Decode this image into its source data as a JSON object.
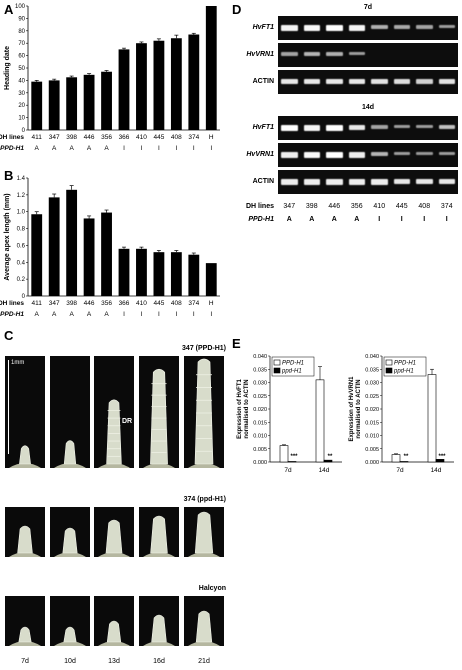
{
  "panels": {
    "A": "A",
    "B": "B",
    "C": "C",
    "D": "D",
    "E": "E"
  },
  "dh_label": "DH lines",
  "ppd_label": "PPD-H1",
  "chartA": {
    "type": "bar",
    "ylabel": "Heading date",
    "ylim": [
      0,
      100
    ],
    "yticks": [
      0,
      10,
      20,
      30,
      40,
      50,
      60,
      70,
      80,
      90,
      100
    ],
    "categories": [
      "411",
      "347",
      "398",
      "446",
      "356",
      "366",
      "410",
      "445",
      "408",
      "374",
      "H"
    ],
    "genotype": [
      "A",
      "A",
      "A",
      "A",
      "A",
      "I",
      "I",
      "I",
      "I",
      "I",
      "I"
    ],
    "values": [
      39,
      40,
      42.5,
      44.5,
      47,
      65,
      70,
      72,
      74,
      77,
      100
    ],
    "errors": [
      1,
      1,
      1,
      1,
      1,
      1,
      1,
      1.5,
      2.5,
      1,
      0
    ]
  },
  "chartB": {
    "type": "bar",
    "ylabel": "Average apex length (mm)",
    "ylim": [
      0,
      1.4
    ],
    "yticks": [
      "0",
      "0.2",
      "0.4",
      "0.6",
      "0.8",
      "1.0",
      "1.2",
      "1.4"
    ],
    "categories": [
      "411",
      "347",
      "398",
      "446",
      "356",
      "366",
      "410",
      "445",
      "408",
      "374",
      "H"
    ],
    "genotype": [
      "A",
      "A",
      "A",
      "A",
      "A",
      "I",
      "I",
      "I",
      "I",
      "I",
      "I"
    ],
    "values": [
      0.97,
      1.17,
      1.26,
      0.92,
      0.99,
      0.56,
      0.56,
      0.52,
      0.52,
      0.49,
      0.39
    ],
    "errors": [
      0.03,
      0.04,
      0.05,
      0.03,
      0.03,
      0.02,
      0.02,
      0.02,
      0.02,
      0.02,
      0
    ]
  },
  "panelC": {
    "scale": "1mm",
    "row1": "347 (PPD-H1)",
    "row2": "374 (ppd-H1)",
    "row3": "Halcyon",
    "dr": "DR",
    "days": [
      "7d",
      "10d",
      "13d",
      "16d",
      "21d"
    ]
  },
  "panelD": {
    "title7": "7d",
    "title14": "14d",
    "genes": [
      "HvFT1",
      "HvVRN1",
      "ACTIN"
    ],
    "lines": [
      "347",
      "398",
      "446",
      "356",
      "410",
      "445",
      "408",
      "374"
    ],
    "genotype": [
      "A",
      "A",
      "A",
      "A",
      "I",
      "I",
      "I",
      "I"
    ]
  },
  "chartE1": {
    "type": "bar",
    "ylabel": "Expression of HvFT1 normalised to ACTIN",
    "ylim": [
      0,
      0.04
    ],
    "yticks": [
      "0.000",
      "0.005",
      "0.010",
      "0.015",
      "0.020",
      "0.025",
      "0.030",
      "0.035",
      "0.040"
    ],
    "categories": [
      "7d",
      "14d"
    ],
    "series": [
      {
        "name": "PPD-H1",
        "values": [
          0.0062,
          0.031
        ],
        "errors": [
          0.0003,
          0.005
        ]
      },
      {
        "name": "ppd-H1",
        "values": [
          0.0002,
          0.0007
        ],
        "errors": [
          0,
          0
        ]
      }
    ],
    "stars": [
      "***",
      "**"
    ]
  },
  "chartE2": {
    "type": "bar",
    "ylabel": "Expression of HvVRN1 normalised to ACTIN",
    "ylim": [
      0,
      0.04
    ],
    "yticks": [
      "0.000",
      "0.005",
      "0.010",
      "0.015",
      "0.020",
      "0.025",
      "0.030",
      "0.035",
      "0.040"
    ],
    "categories": [
      "7d",
      "14d"
    ],
    "series": [
      {
        "name": "PPD-H1",
        "values": [
          0.0028,
          0.033
        ],
        "errors": [
          0.0003,
          0.002
        ]
      },
      {
        "name": "ppd-H1",
        "values": [
          0.0002,
          0.001
        ],
        "errors": [
          0,
          0
        ]
      }
    ],
    "stars": [
      "**",
      "***"
    ]
  }
}
